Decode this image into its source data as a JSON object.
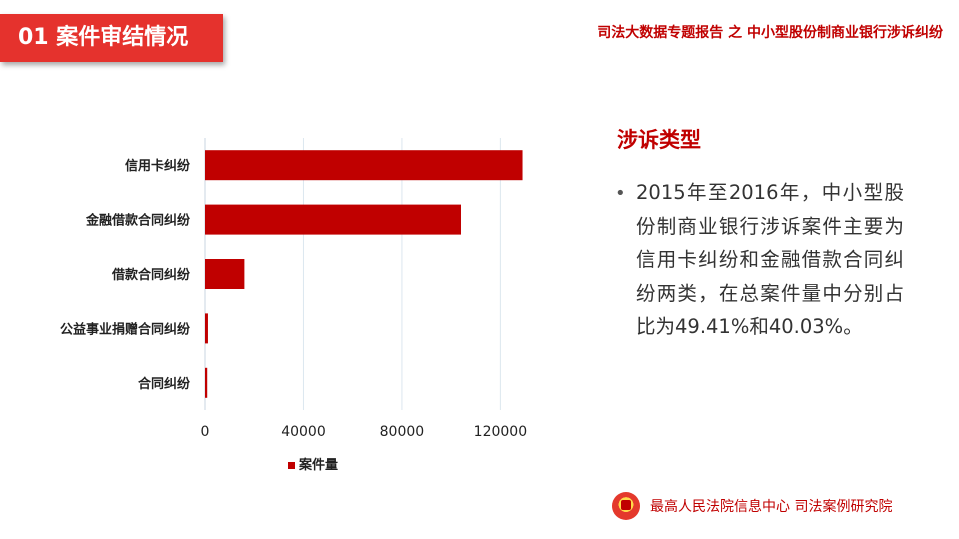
{
  "header": {
    "section_title": "01  案件审结情况",
    "report_title": "司法大数据专题报告 之 中小型股份制商业银行涉诉纠纷"
  },
  "chart_data": {
    "type": "bar",
    "orientation": "horizontal",
    "categories": [
      "信用卡纠纷",
      "金融借款合同纠纷",
      "借款合同纠纷",
      "公益事业捐赠合同纠纷",
      "合同纠纷"
    ],
    "series": [
      {
        "name": "案件量",
        "values": [
          129000,
          104000,
          16000,
          1200,
          900
        ],
        "color": "#c00000"
      }
    ],
    "xlim": [
      0,
      130000
    ],
    "xticks": [
      0,
      40000,
      80000,
      120000
    ],
    "xtick_labels": [
      "0",
      "40000",
      "80000",
      "120000"
    ],
    "grid": true,
    "legend_position": "bottom"
  },
  "side": {
    "heading": "涉诉类型",
    "bullet_symbol": "•",
    "bullet_text": "2015年至2016年，中小型股份制商业银行涉诉案件主要为信用卡纠纷和金融借款合同纠纷两类，在总案件量中分别占比为49.41%和40.03%。"
  },
  "footer": {
    "org": "最高人民法院信息中心  司法案例研究院",
    "emblem_icon": "court-emblem-icon"
  }
}
